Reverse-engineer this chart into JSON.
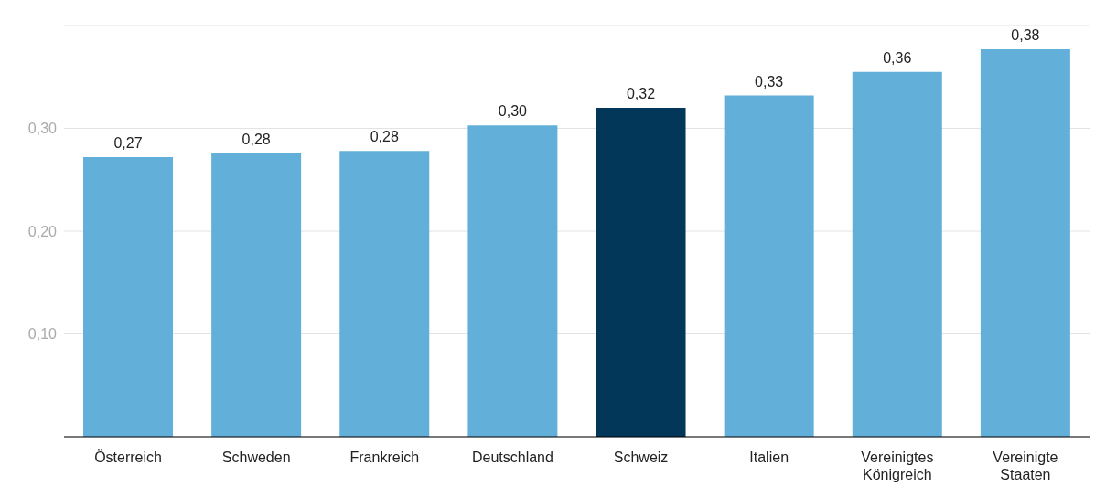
{
  "chart_data": {
    "type": "bar",
    "categories": [
      "Österreich",
      "Schweden",
      "Frankreich",
      "Deutschland",
      "Schweiz",
      "Italien",
      "Vereinigtes Königreich",
      "Vereinigte Staaten"
    ],
    "values": [
      0.272,
      0.276,
      0.278,
      0.303,
      0.32,
      0.332,
      0.355,
      0.377
    ],
    "value_labels": [
      "0,27",
      "0,28",
      "0,28",
      "0,30",
      "0,32",
      "0,33",
      "0,36",
      "0,38"
    ],
    "colors": [
      "#62afd9",
      "#62afd9",
      "#62afd9",
      "#62afd9",
      "#02375a",
      "#62afd9",
      "#62afd9",
      "#62afd9"
    ],
    "ylim": [
      0,
      0.4
    ],
    "yticks": [
      {
        "value": 0.1,
        "label": "0,10"
      },
      {
        "value": 0.2,
        "label": "0,20"
      },
      {
        "value": 0.3,
        "label": "0,30"
      }
    ],
    "grid": "y",
    "legend": false
  }
}
